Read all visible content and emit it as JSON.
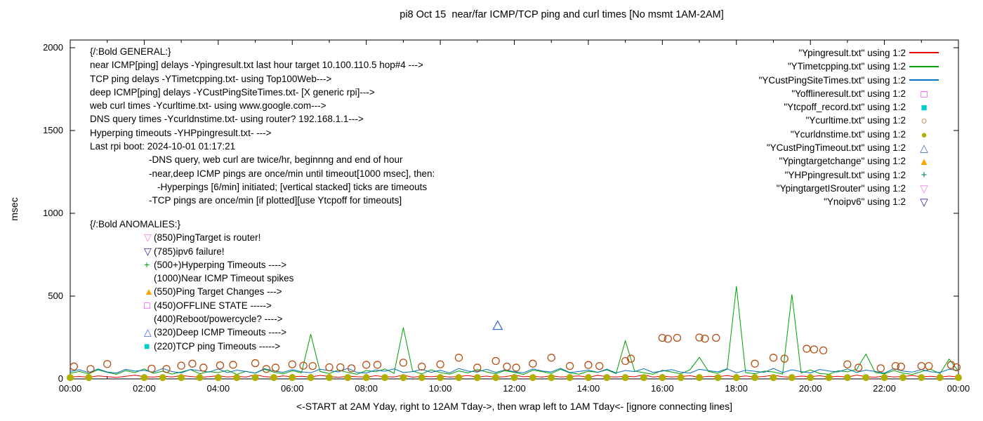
{
  "title": "pi8 Oct 15  near/far ICMP/TCP ping and curl times [No msmt 1AM-2AM]",
  "xlabel": "<-START at 2AM Yday, right to 12AM Tday->, then wrap left to 1AM Tday<- [ignore connecting lines]",
  "ylabel": "msec",
  "annotations": {
    "general": [
      {
        "text": "{/:Bold GENERAL:}",
        "indent": 0
      },
      {
        "text": "near ICMP[ping] delays -Ypingresult.txt last hour target 10.100.110.5 hop#4 --->",
        "indent": 0
      },
      {
        "text": "TCP ping delays -YTimetcpping.txt- using Top100Web--->",
        "indent": 0
      },
      {
        "text": "deep ICMP[ping] delays -YCustPingSiteTimes.txt- [X generic rpi]--->",
        "indent": 0
      },
      {
        "text": "web curl times -Ycurltime.txt- using www.google.com--->",
        "indent": 0
      },
      {
        "text": "DNS query times -Ycurldnstime.txt- using router? 192.168.1.1--->",
        "indent": 0
      },
      {
        "text": "Hyperping timeouts -YHPpingresult.txt- --->",
        "indent": 0
      },
      {
        "text": "Last rpi boot: 2024-10-01 01:17:21",
        "indent": 0
      },
      {
        "text": "-DNS query, web curl are twice/hr, beginnng and end of hour",
        "indent": 1
      },
      {
        "text": "-near,deep ICMP pings are once/min until timeout[1000 msec], then:",
        "indent": 1
      },
      {
        "text": "-Hyperpings [6/min] initiated; [vertical stacked] ticks are timeouts",
        "indent": 2
      },
      {
        "text": "-TCP pings are once/min [if plotted][use Ytcpoff for timeouts]",
        "indent": 1
      }
    ],
    "anomalies": [
      {
        "marker": null,
        "color": null,
        "text": "{/:Bold ANOMALIES:}",
        "heading": true
      },
      {
        "marker": "tri-down-open",
        "color": "#ee82ee",
        "text": "(850)PingTarget is router!"
      },
      {
        "marker": "tri-down-open",
        "color": "#26269e",
        "text": "(785)ipv6 failure!"
      },
      {
        "marker": "plus",
        "color": "#00a000",
        "text": "(500+)Hyperping Timeouts ---->"
      },
      {
        "marker": null,
        "color": null,
        "text": "(1000)Near ICMP Timeout spikes"
      },
      {
        "marker": "triangle-filled",
        "color": "#ffa500",
        "text": "(550)Ping Target Changes --->"
      },
      {
        "marker": "square-open",
        "color": "#ff00ff",
        "text": "(450)OFFLINE STATE ----->"
      },
      {
        "marker": null,
        "color": null,
        "text": "(400)Reboot/powercycle? ---->"
      },
      {
        "marker": "triangle-open",
        "color": "#4169e1",
        "text": "(320)Deep ICMP Timeouts ---->"
      },
      {
        "marker": "square-filled",
        "color": "#00cccc",
        "text": "(220)TCP ping Timeouts ----->"
      }
    ]
  },
  "legend": {
    "items": [
      {
        "label": "\"Ypingresult.txt\" using 1:2",
        "marker": "line",
        "color": "#e60000"
      },
      {
        "label": "\"YTimetcpping.txt\" using 1:2",
        "marker": "line",
        "color": "#00a000"
      },
      {
        "label": "\"YCustPingSiteTimes.txt\" using 1:2",
        "marker": "line",
        "color": "#0070c0"
      },
      {
        "label": "\"Yofflineresult.txt\" using 1:2",
        "marker": "square-open",
        "color": "#ff00ff"
      },
      {
        "label": "\"Ytcpoff_record.txt\" using 1:2",
        "marker": "square-filled",
        "color": "#00cccc"
      },
      {
        "label": "\"Ycurltime.txt\" using 1:2",
        "marker": "circle-open",
        "color": "#b45014"
      },
      {
        "label": "\"Ycurldnstime.txt\" using 1:2",
        "marker": "circle-filled",
        "color": "#b0b000"
      },
      {
        "label": "\"YCustPingTimeout.txt\" using 1:2",
        "marker": "triangle-open",
        "color": "#4169e1"
      },
      {
        "label": "\"Ypingtargetchange\" using 1:2",
        "marker": "triangle-filled",
        "color": "#ffa500"
      },
      {
        "label": "\"YHPpingresult.txt\" using 1:2",
        "marker": "plus",
        "color": "#008050"
      },
      {
        "label": "\"YpingtargetISrouter\" using 1:2",
        "marker": "tri-down-open",
        "color": "#ee82ee"
      },
      {
        "label": "\"Ynoipv6\" using 1:2",
        "marker": "tri-down-open",
        "color": "#26269e"
      }
    ]
  },
  "chart_data": {
    "type": "line",
    "title": "pi8 Oct 15  near/far ICMP/TCP ping and curl times [No msmt 1AM-2AM]",
    "xlabel": "<-START at 2AM Yday, right to 12AM Tday->, then wrap left to 1AM Tday<- [ignore connecting lines]",
    "ylabel": "msec",
    "x_range_hours": [
      0,
      24
    ],
    "ylim": [
      0,
      2000
    ],
    "grid": false,
    "legend_position": "top-right",
    "x_tick_hours": [
      0,
      2,
      4,
      6,
      8,
      10,
      12,
      14,
      16,
      18,
      20,
      22,
      24
    ],
    "x_tick_labels": [
      "00:00",
      "02:00",
      "04:00",
      "06:00",
      "08:00",
      "10:00",
      "12:00",
      "14:00",
      "16:00",
      "18:00",
      "20:00",
      "22:00",
      "00:00"
    ],
    "y_ticks": [
      0,
      500,
      1000,
      1500,
      2000
    ],
    "sample_x": {
      "start": 0,
      "step": 0.25,
      "count": 97
    },
    "series": [
      {
        "name": "Ypingresult.txt",
        "type": "line",
        "color": "#e60000",
        "values": [
          12,
          15,
          10,
          18,
          14,
          9,
          16,
          22,
          13,
          11,
          17,
          12,
          20,
          15,
          10,
          14,
          19,
          12,
          16,
          11,
          25,
          14,
          10,
          18,
          13,
          16,
          12,
          21,
          15,
          9,
          17,
          13,
          11,
          19,
          14,
          12,
          23,
          10,
          16,
          13,
          18,
          11,
          15,
          20,
          12,
          17,
          10,
          14,
          22,
          13,
          16,
          11,
          19,
          12,
          15,
          18,
          10,
          21,
          14,
          12,
          16,
          13,
          24,
          11,
          17,
          12,
          15,
          19,
          10,
          16,
          13,
          20,
          12,
          18,
          11,
          15,
          22,
          13,
          10,
          17,
          14,
          19,
          12,
          16,
          11,
          23,
          14,
          10,
          18,
          12,
          15,
          20,
          13,
          16,
          11,
          17,
          12
        ]
      },
      {
        "name": "YTimetcpping.txt",
        "type": "line",
        "color": "#00a000",
        "values": [
          35,
          45,
          30,
          55,
          40,
          28,
          50,
          38,
          60,
          33,
          47,
          29,
          42,
          56,
          31,
          44,
          38,
          52,
          27,
          46,
          35,
          58,
          41,
          30,
          49,
          37,
          270,
          45,
          32,
          54,
          39,
          28,
          51,
          43,
          60,
          34,
          310,
          47,
          30,
          55,
          38,
          29,
          48,
          36,
          57,
          42,
          31,
          50,
          39,
          27,
          53,
          44,
          33,
          58,
          36,
          29,
          46,
          40,
          55,
          32,
          230,
          48,
          37,
          28,
          52,
          41,
          30,
          56,
          130,
          45,
          34,
          59,
          560,
          38,
          31,
          47,
          42,
          29,
          510,
          36,
          54,
          33,
          28,
          49,
          43,
          57,
          150,
          39,
          30,
          51,
          35,
          27,
          44,
          58,
          32,
          120,
          46
        ]
      },
      {
        "name": "YCustPingSiteTimes.txt",
        "type": "line",
        "color": "#0070c0",
        "values": [
          45,
          55,
          38,
          60,
          42,
          35,
          58,
          47,
          52,
          40,
          63,
          44,
          36,
          57,
          49,
          41,
          60,
          38,
          53,
          45,
          35,
          62,
          48,
          40,
          56,
          43,
          37,
          59,
          50,
          42,
          64,
          39,
          35,
          54,
          46,
          61,
          38,
          44,
          57,
          40,
          52,
          36,
          63,
          47,
          41,
          58,
          39,
          55,
          43,
          37,
          60,
          48,
          42,
          64,
          38,
          45,
          53,
          40,
          59,
          36,
          51,
          44,
          62,
          39,
          47,
          56,
          41,
          35,
          58,
          49,
          43,
          61,
          37,
          52,
          46,
          40,
          63,
          38,
          55,
          44,
          36,
          57,
          48,
          42,
          60,
          39,
          53,
          45,
          35,
          62,
          47,
          41,
          56,
          43,
          38,
          59,
          50
        ]
      },
      {
        "name": "Ycurltime.txt",
        "type": "points",
        "marker": "circle-open",
        "color": "#b45014",
        "points": [
          [
            0.1,
            75
          ],
          [
            0.55,
            60
          ],
          [
            1.0,
            90
          ],
          [
            2.2,
            62
          ],
          [
            2.6,
            60
          ],
          [
            3.0,
            80
          ],
          [
            3.3,
            92
          ],
          [
            3.6,
            68
          ],
          [
            4.05,
            82
          ],
          [
            4.4,
            85
          ],
          [
            5.0,
            95
          ],
          [
            5.3,
            60
          ],
          [
            5.55,
            68
          ],
          [
            6.0,
            88
          ],
          [
            6.3,
            80
          ],
          [
            6.55,
            78
          ],
          [
            7.0,
            70
          ],
          [
            7.3,
            70
          ],
          [
            7.6,
            64
          ],
          [
            8.0,
            85
          ],
          [
            8.3,
            85
          ],
          [
            9.0,
            98
          ],
          [
            9.5,
            74
          ],
          [
            10.0,
            88
          ],
          [
            10.5,
            128
          ],
          [
            11.0,
            68
          ],
          [
            11.5,
            108
          ],
          [
            11.8,
            74
          ],
          [
            12.05,
            68
          ],
          [
            12.5,
            92
          ],
          [
            13.0,
            128
          ],
          [
            13.5,
            78
          ],
          [
            14.0,
            84
          ],
          [
            14.3,
            78
          ],
          [
            15.0,
            108
          ],
          [
            15.15,
            122
          ],
          [
            16.0,
            248
          ],
          [
            16.15,
            242
          ],
          [
            16.4,
            248
          ],
          [
            17.0,
            250
          ],
          [
            17.15,
            243
          ],
          [
            17.45,
            248
          ],
          [
            18.5,
            92
          ],
          [
            19.0,
            128
          ],
          [
            19.3,
            122
          ],
          [
            19.9,
            182
          ],
          [
            20.1,
            178
          ],
          [
            20.35,
            172
          ],
          [
            21.0,
            88
          ],
          [
            21.3,
            68
          ],
          [
            21.9,
            64
          ],
          [
            22.3,
            78
          ],
          [
            22.45,
            74
          ],
          [
            23.0,
            78
          ],
          [
            23.2,
            78
          ],
          [
            23.8,
            84
          ],
          [
            23.95,
            70
          ]
        ]
      },
      {
        "name": "Ycurldnstime.txt",
        "type": "points",
        "marker": "circle-filled",
        "color": "#b0b000",
        "points": [
          [
            0,
            8
          ],
          [
            0.5,
            8
          ],
          [
            2,
            8
          ],
          [
            2.5,
            8
          ],
          [
            3,
            8
          ],
          [
            3.5,
            8
          ],
          [
            4,
            8
          ],
          [
            4.5,
            8
          ],
          [
            5,
            8
          ],
          [
            5.5,
            8
          ],
          [
            6,
            8
          ],
          [
            6.5,
            8
          ],
          [
            7,
            8
          ],
          [
            7.5,
            8
          ],
          [
            8,
            8
          ],
          [
            8.5,
            8
          ],
          [
            9,
            8
          ],
          [
            9.5,
            8
          ],
          [
            10,
            8
          ],
          [
            10.5,
            8
          ],
          [
            11,
            8
          ],
          [
            11.5,
            8
          ],
          [
            12,
            8
          ],
          [
            12.5,
            8
          ],
          [
            13,
            8
          ],
          [
            13.5,
            8
          ],
          [
            14,
            8
          ],
          [
            14.5,
            8
          ],
          [
            15,
            8
          ],
          [
            15.5,
            8
          ],
          [
            16,
            8
          ],
          [
            16.5,
            8
          ],
          [
            17,
            8
          ],
          [
            17.5,
            8
          ],
          [
            18,
            8
          ],
          [
            18.5,
            8
          ],
          [
            19,
            8
          ],
          [
            19.5,
            8
          ],
          [
            20,
            8
          ],
          [
            20.5,
            8
          ],
          [
            21,
            8
          ],
          [
            21.5,
            8
          ],
          [
            22,
            8
          ],
          [
            22.5,
            8
          ],
          [
            23,
            8
          ],
          [
            23.5,
            8
          ],
          [
            24,
            8
          ]
        ]
      },
      {
        "name": "YCustPingTimeout.txt",
        "type": "points",
        "marker": "triangle-open",
        "color": "#4169e1",
        "points": [
          [
            11.55,
            320
          ]
        ]
      }
    ]
  }
}
